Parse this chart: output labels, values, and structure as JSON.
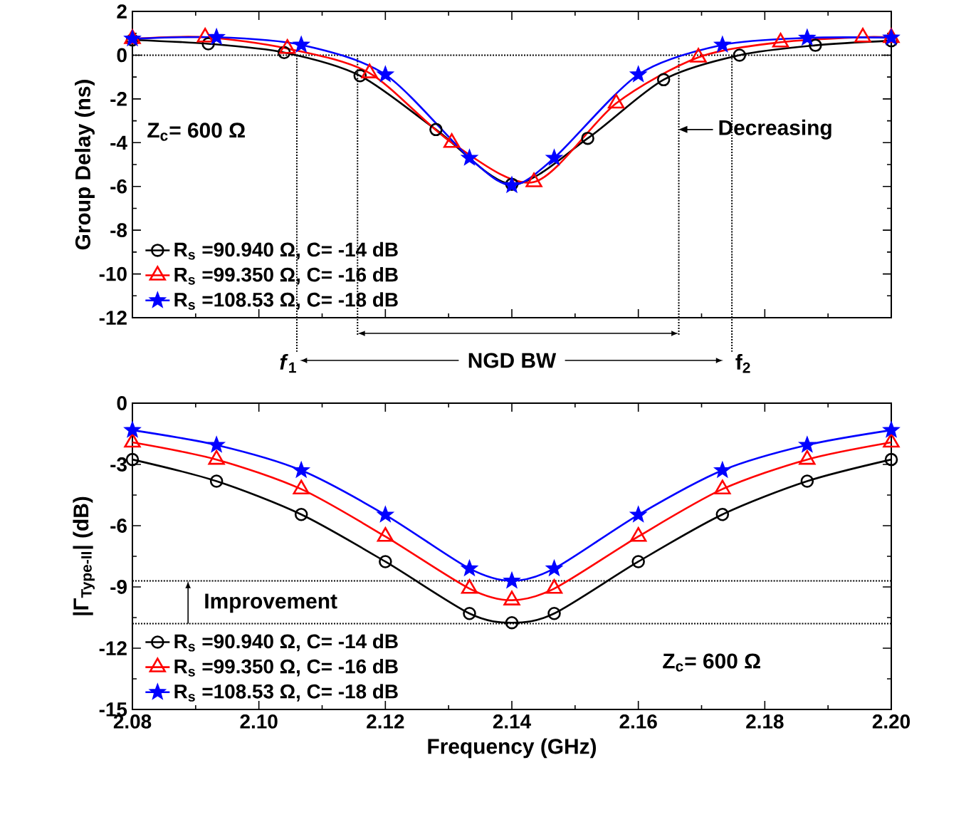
{
  "chart_data": [
    {
      "type": "line",
      "ylabel": "Group Delay (ns)",
      "xlim": [
        2.08,
        2.2
      ],
      "ylim": [
        -12,
        2
      ],
      "xticks": [
        2.08,
        2.1,
        2.12,
        2.14,
        2.16,
        2.18,
        2.2
      ],
      "yticks": [
        -12,
        -10,
        -8,
        -6,
        -4,
        -2,
        0,
        2
      ],
      "tick_labels": "y",
      "legend": "bottom left",
      "grid": false,
      "series": [
        {
          "name": "R$_{s}$ =90.940 Ω, C= -14 dB",
          "color": "#000000",
          "marker": "circle",
          "x": [
            2.08,
            2.092,
            2.104,
            2.116,
            2.128,
            2.14,
            2.152,
            2.164,
            2.176,
            2.188,
            2.2
          ],
          "values": [
            0.7,
            0.52,
            0.12,
            -0.94,
            -3.4,
            -5.9,
            -3.8,
            -1.12,
            0.0,
            0.45,
            0.66
          ]
        },
        {
          "name": "R$_{s}$ =99.350 Ω, C= -16 dB",
          "color": "#ff0000",
          "marker": "triangle",
          "x": [
            2.08,
            2.0915,
            2.1045,
            2.1175,
            2.1305,
            2.1435,
            2.1565,
            2.1695,
            2.1825,
            2.1955,
            2.2
          ],
          "values": [
            0.75,
            0.82,
            0.3,
            -0.82,
            -4.0,
            -5.8,
            -2.2,
            -0.1,
            0.59,
            0.82,
            0.8
          ]
        },
        {
          "name": "R$_{s}$ =108.53 Ω, C= -18 dB",
          "color": "#0000ff",
          "marker": "star",
          "x": [
            2.08,
            2.0933,
            2.1067,
            2.12,
            2.1333,
            2.14,
            2.1467,
            2.16,
            2.1733,
            2.1867,
            2.2
          ],
          "values": [
            0.75,
            0.82,
            0.47,
            -0.89,
            -4.7,
            -5.95,
            -4.7,
            -0.89,
            0.47,
            0.79,
            0.8
          ]
        }
      ],
      "ref_lines": [
        {
          "axis": "y",
          "value": 0,
          "line_style": "dotted"
        },
        {
          "axis": "x",
          "value": 2.106,
          "label": "*f*$_{1}$",
          "line_style": "dotted"
        },
        {
          "axis": "x",
          "value": 2.1156,
          "line_style": "dotted"
        },
        {
          "axis": "x",
          "value": 2.1664,
          "line_style": "dotted"
        },
        {
          "axis": "x",
          "value": 2.1748,
          "label": "f$_{2}$",
          "line_style": "dotted"
        }
      ],
      "annotations": [
        "Z$_{c}$= 600 Ω",
        {
          "text": "Decreasing",
          "x": 2.1664,
          "y": -3.4
        },
        "NGD BW"
      ]
    },
    {
      "type": "line",
      "xlabel": "Frequency (GHz)",
      "ylabel": "|Γ$_{Type-II}$| (dB)",
      "xlim": [
        2.08,
        2.2
      ],
      "ylim": [
        -15,
        0
      ],
      "xticks": [
        2.08,
        {
          "value": 2.1,
          "label": "2.10"
        },
        2.12,
        2.14,
        2.16,
        2.18,
        {
          "value": 2.2,
          "label": "2.20"
        }
      ],
      "yticks": [
        -15,
        -12,
        -9,
        -6,
        -3,
        0
      ],
      "legend": "bottom left",
      "grid": false,
      "series": [
        {
          "name": "R$_{s}$ =90.940 Ω, C= -14 dB",
          "color": "#000000",
          "marker": "circle",
          "x": [
            2.08,
            2.0933,
            2.1067,
            2.12,
            2.1333,
            2.14,
            2.1467,
            2.16,
            2.1733,
            2.1867,
            2.2
          ],
          "values": [
            -2.76,
            -3.82,
            -5.45,
            -7.76,
            -10.3,
            -10.75,
            -10.3,
            -7.76,
            -5.45,
            -3.82,
            -2.76
          ]
        },
        {
          "name": "R$_{s}$ =99.350 Ω, C= -16 dB",
          "color": "#ff0000",
          "marker": "triangle",
          "x": [
            2.08,
            2.0933,
            2.1067,
            2.12,
            2.1333,
            2.14,
            2.1467,
            2.16,
            2.1733,
            2.1867,
            2.2
          ],
          "values": [
            -1.92,
            -2.76,
            -4.21,
            -6.53,
            -9.08,
            -9.65,
            -9.08,
            -6.53,
            -4.21,
            -2.76,
            -1.92
          ]
        },
        {
          "name": "R$_{s}$ =108.53 Ω, C= -18 dB",
          "color": "#0000ff",
          "marker": "star",
          "x": [
            2.08,
            2.0933,
            2.1067,
            2.12,
            2.1333,
            2.14,
            2.1467,
            2.16,
            2.1733,
            2.1867,
            2.2
          ],
          "values": [
            -1.32,
            -2.05,
            -3.29,
            -5.47,
            -8.1,
            -8.7,
            -8.1,
            -5.47,
            -3.29,
            -2.05,
            -1.32
          ]
        }
      ],
      "ref_lines": [
        {
          "axis": "y",
          "value": -8.7,
          "line_style": "dotted"
        },
        {
          "axis": "y",
          "value": -10.8,
          "line_style": "dotted"
        }
      ],
      "annotations": [
        "Improvement",
        "Z$_{c}$= 600 Ω"
      ]
    }
  ]
}
